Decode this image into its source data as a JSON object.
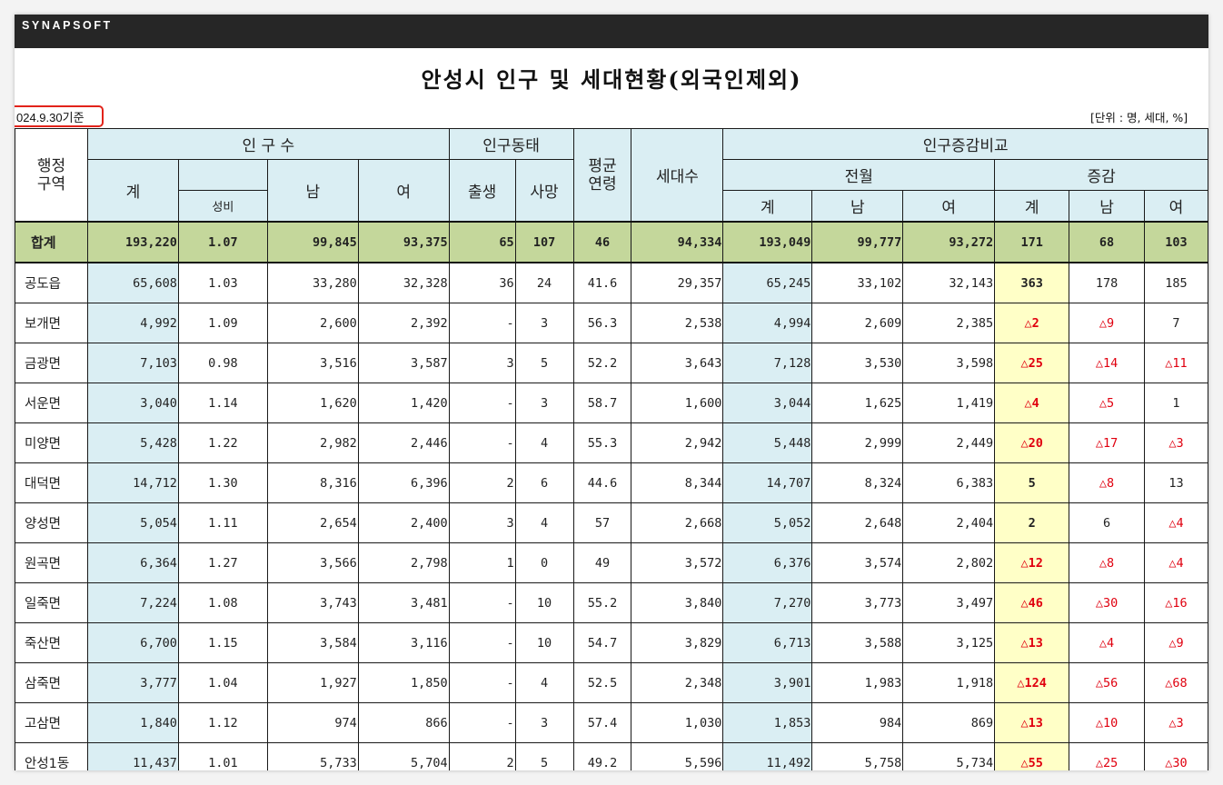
{
  "app": {
    "brand": "SYNAPSOFT"
  },
  "document": {
    "title": "안성시 인구 및 세대현황(외국인제외)",
    "basis_date": "024.9.30기준",
    "unit_note": "[단위 : 명, 세대, %]"
  },
  "headers": {
    "region": "행정\n구역",
    "population": "인 구 수",
    "movement": "인구동태",
    "avg_age": "평균\n연령",
    "households": "세대수",
    "comparison": "인구증감비교",
    "prev_month": "전월",
    "change": "증감",
    "total": "계",
    "sex_ratio": "성비",
    "male": "남",
    "female": "여",
    "births": "출생",
    "deaths": "사망"
  },
  "table": {
    "total_row": [
      "합계",
      "193,220",
      "1.07",
      "99,845",
      "93,375",
      "65",
      "107",
      "46",
      "94,334",
      "193,049",
      "99,777",
      "93,272",
      "171",
      "68",
      "103"
    ],
    "rows": [
      [
        "공도읍",
        "65,608",
        "1.03",
        "33,280",
        "32,328",
        "36",
        "24",
        "41.6",
        "29,357",
        "65,245",
        "33,102",
        "32,143",
        "363",
        "178",
        "185"
      ],
      [
        "보개면",
        "4,992",
        "1.09",
        "2,600",
        "2,392",
        "-",
        "3",
        "56.3",
        "2,538",
        "4,994",
        "2,609",
        "2,385",
        "△2",
        "△9",
        "7"
      ],
      [
        "금광면",
        "7,103",
        "0.98",
        "3,516",
        "3,587",
        "3",
        "5",
        "52.2",
        "3,643",
        "7,128",
        "3,530",
        "3,598",
        "△25",
        "△14",
        "△11"
      ],
      [
        "서운면",
        "3,040",
        "1.14",
        "1,620",
        "1,420",
        "-",
        "3",
        "58.7",
        "1,600",
        "3,044",
        "1,625",
        "1,419",
        "△4",
        "△5",
        "1"
      ],
      [
        "미양면",
        "5,428",
        "1.22",
        "2,982",
        "2,446",
        "-",
        "4",
        "55.3",
        "2,942",
        "5,448",
        "2,999",
        "2,449",
        "△20",
        "△17",
        "△3"
      ],
      [
        "대덕면",
        "14,712",
        "1.30",
        "8,316",
        "6,396",
        "2",
        "6",
        "44.6",
        "8,344",
        "14,707",
        "8,324",
        "6,383",
        "5",
        "△8",
        "13"
      ],
      [
        "양성면",
        "5,054",
        "1.11",
        "2,654",
        "2,400",
        "3",
        "4",
        "57",
        "2,668",
        "5,052",
        "2,648",
        "2,404",
        "2",
        "6",
        "△4"
      ],
      [
        "원곡면",
        "6,364",
        "1.27",
        "3,566",
        "2,798",
        "1",
        "0",
        "49",
        "3,572",
        "6,376",
        "3,574",
        "2,802",
        "△12",
        "△8",
        "△4"
      ],
      [
        "일죽면",
        "7,224",
        "1.08",
        "3,743",
        "3,481",
        "-",
        "10",
        "55.2",
        "3,840",
        "7,270",
        "3,773",
        "3,497",
        "△46",
        "△30",
        "△16"
      ],
      [
        "죽산면",
        "6,700",
        "1.15",
        "3,584",
        "3,116",
        "-",
        "10",
        "54.7",
        "3,829",
        "6,713",
        "3,588",
        "3,125",
        "△13",
        "△4",
        "△9"
      ],
      [
        "삼죽면",
        "3,777",
        "1.04",
        "1,927",
        "1,850",
        "-",
        "4",
        "52.5",
        "2,348",
        "3,901",
        "1,983",
        "1,918",
        "△124",
        "△56",
        "△68"
      ],
      [
        "고삼면",
        "1,840",
        "1.12",
        "974",
        "866",
        "-",
        "3",
        "57.4",
        "1,030",
        "1,853",
        "984",
        "869",
        "△13",
        "△10",
        "△3"
      ],
      [
        "안성1동",
        "11,437",
        "1.01",
        "5,733",
        "5,704",
        "2",
        "5",
        "49.2",
        "5,596",
        "11,492",
        "5,758",
        "5,734",
        "△55",
        "△25",
        "△30"
      ]
    ]
  },
  "colors": {
    "header_blue": "#daeef3",
    "total_green": "#c4d79b",
    "change_yellow": "#ffffc7",
    "negative_red": "#e0000f",
    "highlight_box": "#e2231a",
    "topbar": "#262626"
  }
}
